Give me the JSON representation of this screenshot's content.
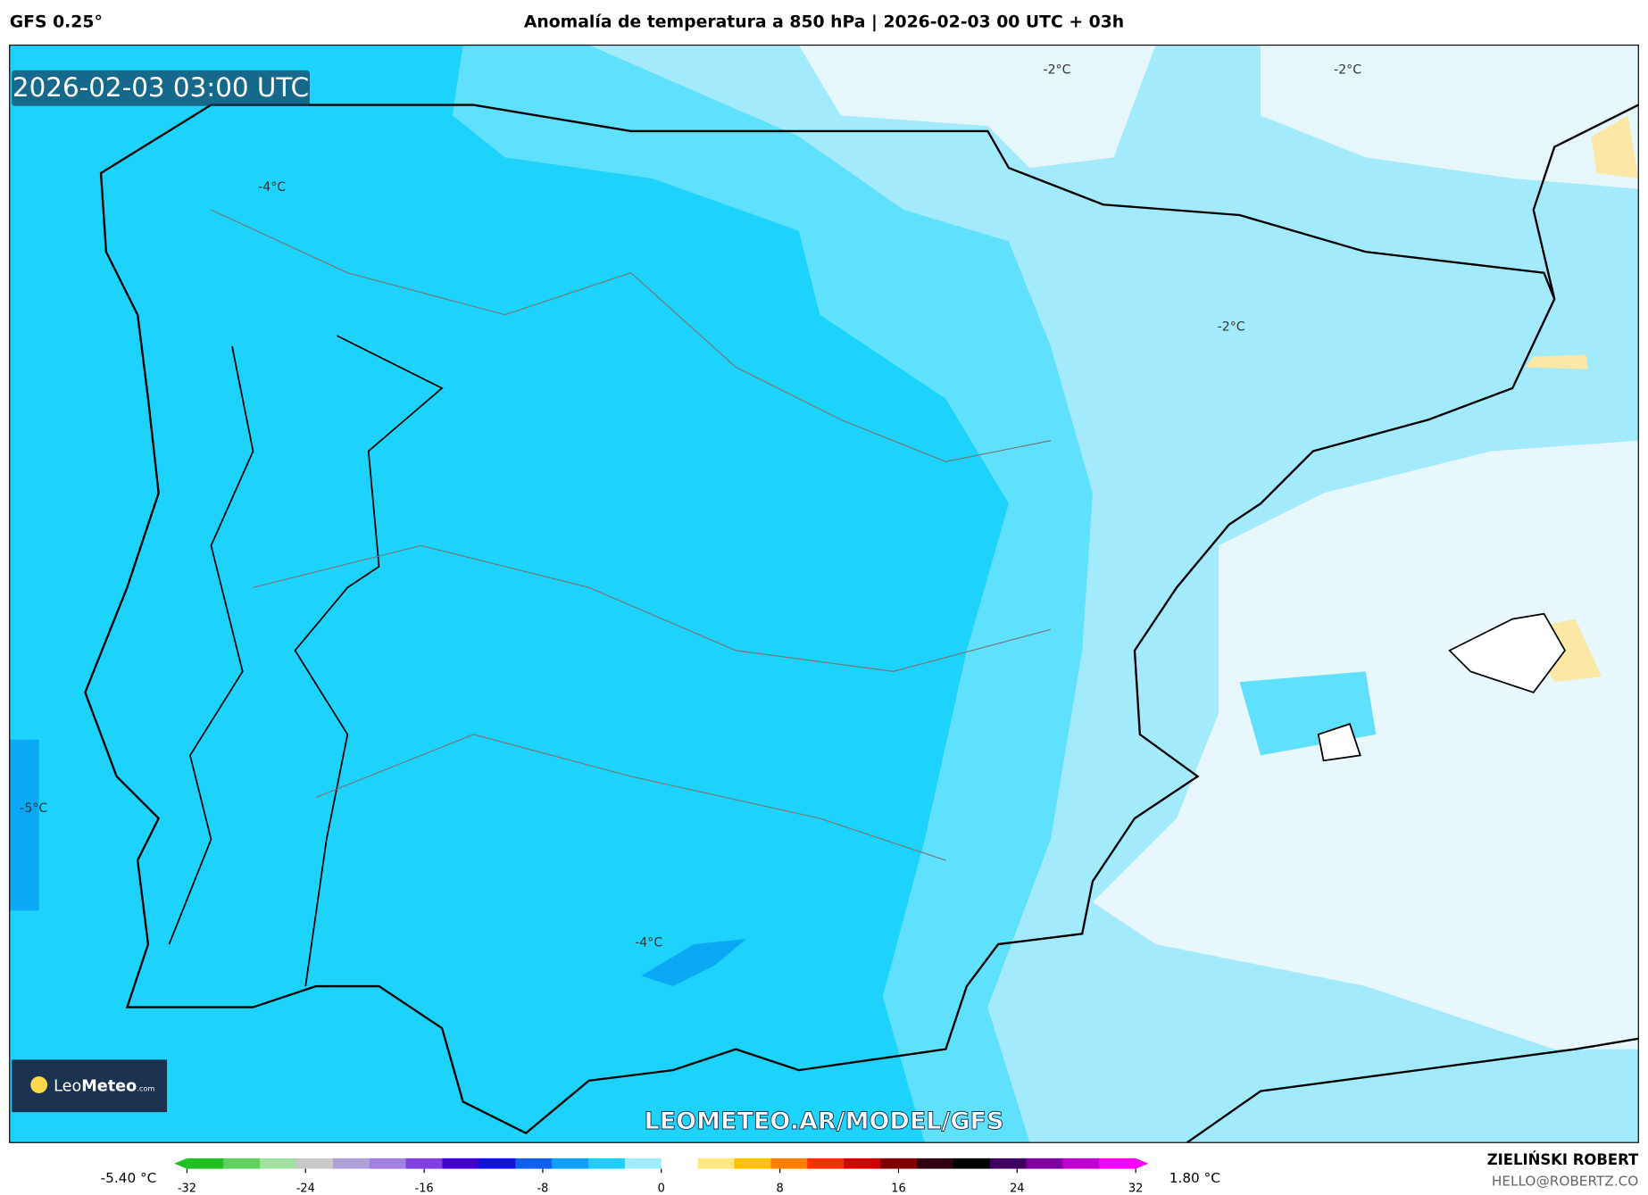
{
  "header": {
    "model": "GFS 0.25°",
    "title": "Anomalía de temperatura a 850 hPa | 2026-02-03 00 UTC + 03h"
  },
  "map": {
    "timestamp": "2026-02-03 03:00 UTC",
    "contour_labels": [
      "-2°C",
      "-2°C",
      "-2°C",
      "-4°C",
      "-4°C",
      "-5°C"
    ],
    "logo": {
      "name_light": "Leo",
      "name_bold": "Meteo",
      "suffix": ".com"
    },
    "watermark": "LEOMETEO.AR/MODEL/GFS"
  },
  "colorbar": {
    "min_label": "-5.40 °C",
    "max_label": "1.80 °C",
    "ticks": [
      -32,
      -24,
      -16,
      -8,
      0,
      8,
      16,
      24,
      32
    ],
    "colors": [
      "#20c020",
      "#60d060",
      "#a0e0a0",
      "#c8c8c8",
      "#b0a0d8",
      "#a080e0",
      "#8040e0",
      "#4000d0",
      "#1010e0",
      "#1060f0",
      "#10a0f8",
      "#20d0fc",
      "#a0ecfc",
      "#ffffff",
      "#ffe880",
      "#ffc000",
      "#ff8000",
      "#ff3000",
      "#d00000",
      "#800000",
      "#300010",
      "#000000",
      "#400060",
      "#8000a0",
      "#c000d0",
      "#ff00ff"
    ]
  },
  "footer": {
    "author": "ZIELIŃSKI ROBERT",
    "email": "HELLO@ROBERTZ.CO"
  }
}
